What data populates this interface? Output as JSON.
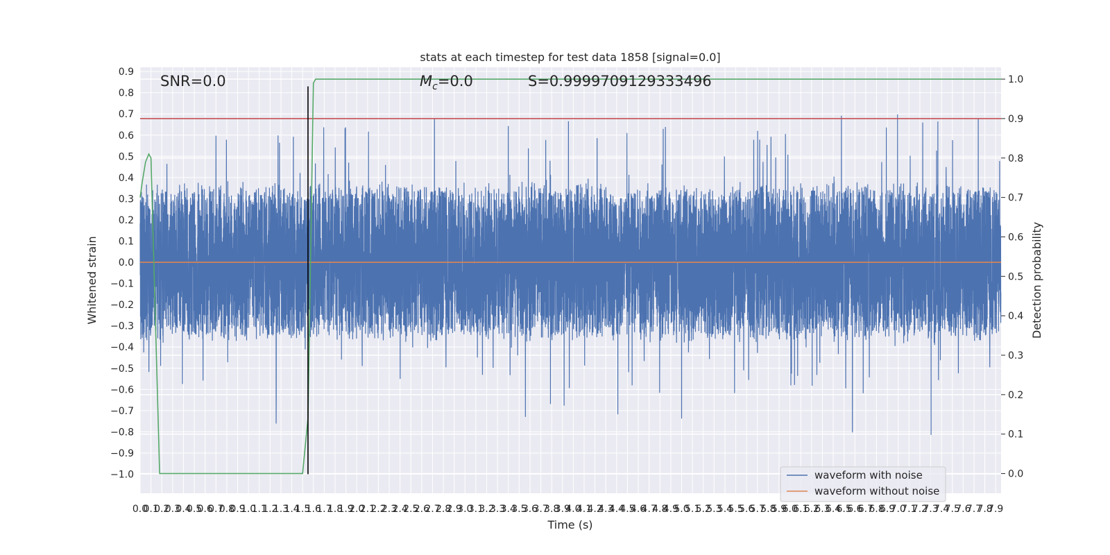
{
  "chart_data": {
    "type": "line",
    "title": "stats at each timestep for test data 1858 [signal=0.0]",
    "xlabel": "Time (s)",
    "ylabel": "Whitened strain",
    "y2label": "Detection probability",
    "xlim": [
      0.0,
      7.95
    ],
    "ylim": [
      -1.09,
      0.92
    ],
    "y2lim": [
      -0.05,
      1.03
    ],
    "xticks": [
      0.0,
      0.1,
      0.2,
      0.3,
      0.4,
      0.5,
      0.6,
      0.7,
      0.8,
      0.9,
      1.0,
      1.1,
      1.2,
      1.3,
      1.4,
      1.5,
      1.6,
      1.7,
      1.8,
      1.9,
      2.0,
      2.1,
      2.2,
      2.3,
      2.4,
      2.5,
      2.6,
      2.7,
      2.8,
      2.9,
      3.0,
      3.1,
      3.2,
      3.3,
      3.4,
      3.5,
      3.6,
      3.7,
      3.8,
      3.9,
      4.0,
      4.1,
      4.2,
      4.3,
      4.4,
      4.5,
      4.6,
      4.7,
      4.8,
      4.9,
      5.0,
      5.1,
      5.2,
      5.3,
      5.4,
      5.5,
      5.6,
      5.7,
      5.8,
      5.9,
      6.0,
      6.1,
      6.2,
      6.3,
      6.4,
      6.5,
      6.6,
      6.7,
      6.8,
      6.9,
      7.0,
      7.1,
      7.2,
      7.3,
      7.4,
      7.5,
      7.6,
      7.7,
      7.8,
      7.9
    ],
    "yticks": [
      0.9,
      0.8,
      0.7,
      0.6,
      0.5,
      0.4,
      0.3,
      0.2,
      0.1,
      0.0,
      -0.1,
      -0.2,
      -0.3,
      -0.4,
      -0.5,
      -0.6,
      -0.7,
      -0.8,
      -0.9,
      -1.0
    ],
    "y2ticks": [
      1.0,
      0.9,
      0.8,
      0.7,
      0.6,
      0.5,
      0.4,
      0.3,
      0.2,
      0.1,
      0.0
    ],
    "grid": true,
    "legend_placement": "lower-right",
    "annotations": {
      "snr": "SNR=0.0",
      "mc_symbol": "M",
      "mc_sub": "c",
      "mc_value": "=0.0",
      "s": "S=0.9999709129333496"
    },
    "series": [
      {
        "name": "waveform with noise",
        "color": "#4c72b0",
        "kind": "noise",
        "sample_rate_hz": 1024,
        "duration_s": 7.95,
        "amplitude_envelope": {
          "typical_max": 0.45,
          "typical_min": -0.45,
          "peak_max": 0.83,
          "peak_min": -1.0
        }
      },
      {
        "name": "waveform without noise",
        "color": "#dd8452",
        "x": [
          0.0,
          7.95
        ],
        "y": [
          0.0,
          0.0
        ]
      },
      {
        "name": "detection probability",
        "axis": "right",
        "color": "#55a868",
        "x": [
          0.0,
          0.02,
          0.05,
          0.08,
          0.1,
          0.18,
          0.25,
          1.4,
          1.5,
          1.55,
          1.6,
          1.62,
          7.95
        ],
        "y": [
          0.7,
          0.74,
          0.79,
          0.81,
          0.8,
          0.0,
          0.0,
          0.0,
          0.0,
          0.14,
          0.99,
          1.0,
          1.0
        ]
      }
    ],
    "threshold": {
      "axis": "right",
      "value": 0.9,
      "color": "#c44e52"
    },
    "marker_line": {
      "x": 1.55,
      "y_range": [
        -1.0,
        0.83
      ],
      "color": "#000000"
    }
  },
  "legend": {
    "items": [
      {
        "label": "waveform with noise",
        "color": "#4c72b0"
      },
      {
        "label": "waveform without noise",
        "color": "#dd8452"
      }
    ]
  }
}
